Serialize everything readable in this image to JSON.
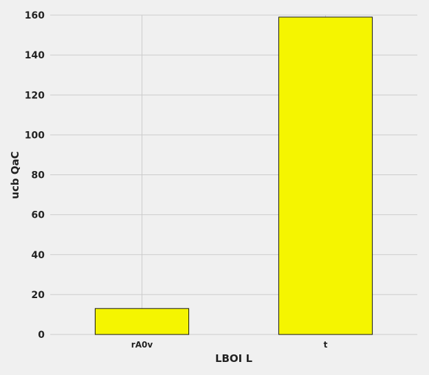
{
  "chart_data": {
    "type": "bar",
    "categories": [
      "rA0v",
      "t"
    ],
    "values": [
      13,
      159
    ],
    "xlabel": "LBOI L",
    "ylabel": "ucb QaC",
    "ylim": [
      0,
      160
    ],
    "yticks": [
      0,
      20,
      40,
      60,
      80,
      100,
      120,
      140,
      160
    ],
    "grid": true,
    "colors": {
      "bar": "#f5f500",
      "bar_edge": "#111111",
      "grid": "#cbcbcb",
      "background": "#f0f0f0"
    }
  }
}
